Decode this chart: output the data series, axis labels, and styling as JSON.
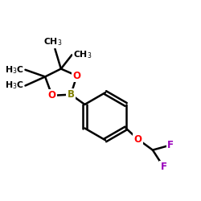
{
  "bg_color": "#ffffff",
  "bond_color": "#000000",
  "bond_width": 1.8,
  "B_color": "#808000",
  "O_color": "#ff0000",
  "F_color": "#9900bb",
  "text_color": "#000000",
  "fig_size": [
    2.5,
    2.5
  ],
  "dpi": 100,
  "xlim": [
    0,
    10
  ],
  "ylim": [
    0,
    10
  ]
}
